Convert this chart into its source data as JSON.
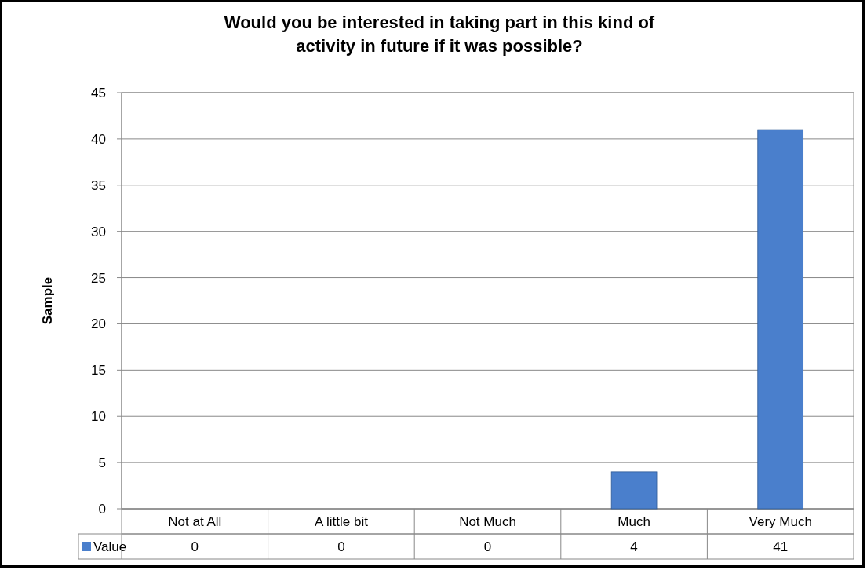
{
  "chart_data": {
    "type": "bar",
    "title": "Would you be interested in taking part in this kind of activity in future if it was possible?",
    "ylabel": "Sample",
    "categories": [
      "Not at All",
      "A little bit",
      "Not Much",
      "Much",
      "Very Much"
    ],
    "series": [
      {
        "name": "Value",
        "color": "#4a7fcc",
        "values": [
          0,
          0,
          0,
          4,
          41
        ]
      }
    ],
    "ylim": [
      0,
      45
    ],
    "yticks": [
      0,
      5,
      10,
      15,
      20,
      25,
      30,
      35,
      40,
      45
    ],
    "grid": "y",
    "data_labels": true,
    "legend": "bottom"
  }
}
